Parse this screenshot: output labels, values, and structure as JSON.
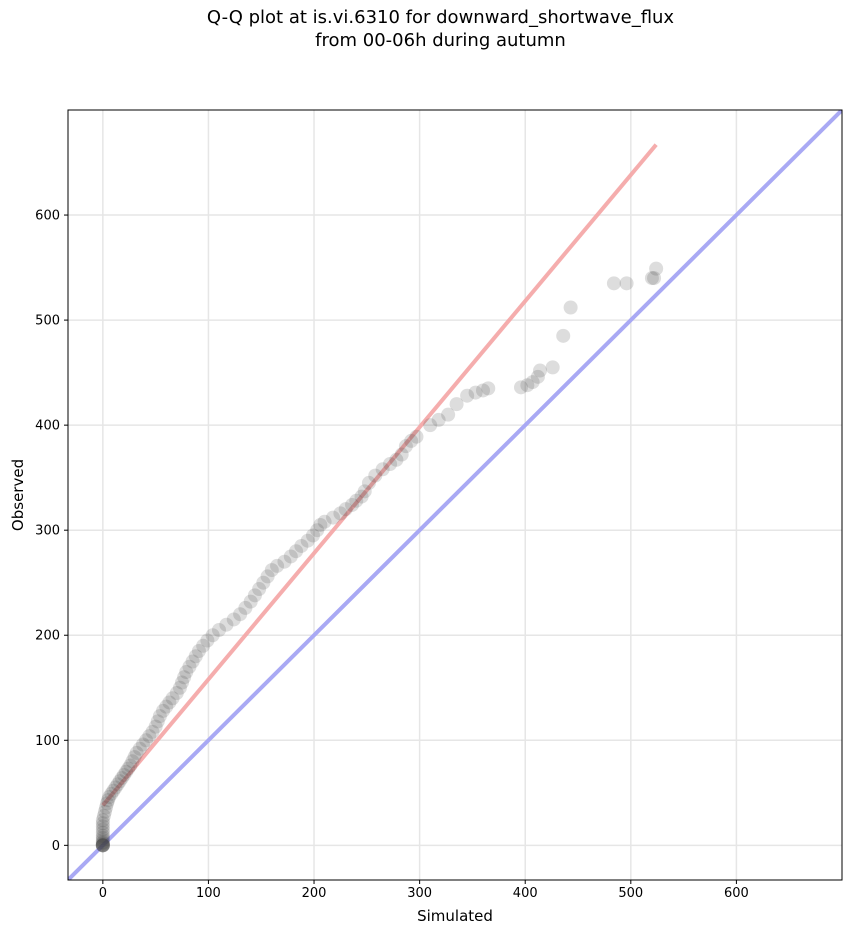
{
  "chart_data": {
    "type": "scatter",
    "title_line1": "Q-Q plot at is.vi.6310 for downward_shortwave_flux",
    "title_line2": "from 00-06h during autumn",
    "xlabel": "Simulated",
    "ylabel": "Observed",
    "xlim": [
      -33,
      700
    ],
    "ylim": [
      -33,
      700
    ],
    "grid": true,
    "xticks": [
      0,
      100,
      200,
      300,
      400,
      500,
      600
    ],
    "yticks": [
      0,
      100,
      200,
      300,
      400,
      500,
      600
    ],
    "colors": {
      "points": "#444444",
      "fit_line": "#f4a4a4",
      "identity_line": "#a9a9f4",
      "grid": "#e6e6e6"
    },
    "fit_line": {
      "x": [
        0,
        524
      ],
      "y": [
        38,
        667
      ]
    },
    "identity_line": {
      "x": [
        -33,
        700
      ],
      "y": [
        -33,
        700
      ]
    },
    "points": [
      [
        0,
        0
      ],
      [
        0,
        0
      ],
      [
        0,
        0
      ],
      [
        0,
        0
      ],
      [
        0,
        0
      ],
      [
        0,
        1
      ],
      [
        0,
        2
      ],
      [
        0,
        3
      ],
      [
        0,
        5
      ],
      [
        0,
        7
      ],
      [
        0,
        9
      ],
      [
        0,
        12
      ],
      [
        0,
        15
      ],
      [
        0,
        18
      ],
      [
        0,
        21
      ],
      [
        0,
        24
      ],
      [
        1,
        28
      ],
      [
        2,
        32
      ],
      [
        3,
        36
      ],
      [
        4,
        40
      ],
      [
        5,
        43
      ],
      [
        6,
        46
      ],
      [
        8,
        49
      ],
      [
        10,
        52
      ],
      [
        12,
        55
      ],
      [
        14,
        58
      ],
      [
        16,
        61
      ],
      [
        18,
        64
      ],
      [
        20,
        67
      ],
      [
        22,
        70
      ],
      [
        24,
        73
      ],
      [
        26,
        76
      ],
      [
        28,
        80
      ],
      [
        30,
        84
      ],
      [
        32,
        88
      ],
      [
        35,
        92
      ],
      [
        38,
        96
      ],
      [
        41,
        100
      ],
      [
        44,
        104
      ],
      [
        47,
        108
      ],
      [
        50,
        113
      ],
      [
        52,
        118
      ],
      [
        54,
        123
      ],
      [
        57,
        128
      ],
      [
        60,
        132
      ],
      [
        63,
        136
      ],
      [
        66,
        140
      ],
      [
        70,
        145
      ],
      [
        73,
        150
      ],
      [
        75,
        155
      ],
      [
        77,
        160
      ],
      [
        79,
        165
      ],
      [
        82,
        170
      ],
      [
        85,
        175
      ],
      [
        88,
        180
      ],
      [
        91,
        185
      ],
      [
        95,
        190
      ],
      [
        99,
        195
      ],
      [
        104,
        200
      ],
      [
        110,
        205
      ],
      [
        117,
        210
      ],
      [
        124,
        215
      ],
      [
        130,
        220
      ],
      [
        135,
        226
      ],
      [
        140,
        232
      ],
      [
        144,
        238
      ],
      [
        148,
        244
      ],
      [
        152,
        250
      ],
      [
        156,
        256
      ],
      [
        160,
        262
      ],
      [
        165,
        266
      ],
      [
        172,
        270
      ],
      [
        178,
        275
      ],
      [
        183,
        280
      ],
      [
        188,
        285
      ],
      [
        194,
        290
      ],
      [
        199,
        295
      ],
      [
        203,
        300
      ],
      [
        206,
        305
      ],
      [
        210,
        308
      ],
      [
        218,
        312
      ],
      [
        225,
        316
      ],
      [
        230,
        320
      ],
      [
        236,
        324
      ],
      [
        240,
        328
      ],
      [
        245,
        332
      ],
      [
        248,
        337
      ],
      [
        252,
        345
      ],
      [
        258,
        352
      ],
      [
        265,
        358
      ],
      [
        272,
        363
      ],
      [
        278,
        367
      ],
      [
        283,
        372
      ],
      [
        287,
        380
      ],
      [
        292,
        385
      ],
      [
        297,
        389
      ],
      [
        310,
        400
      ],
      [
        318,
        405
      ],
      [
        327,
        410
      ],
      [
        335,
        420
      ],
      [
        345,
        428
      ],
      [
        353,
        431
      ],
      [
        360,
        433
      ],
      [
        365,
        435
      ],
      [
        396,
        436
      ],
      [
        402,
        438
      ],
      [
        407,
        441
      ],
      [
        412,
        446
      ],
      [
        414,
        452
      ],
      [
        426,
        455
      ],
      [
        436,
        485
      ],
      [
        443,
        512
      ],
      [
        484,
        535
      ],
      [
        496,
        535
      ],
      [
        520,
        540
      ],
      [
        522,
        540
      ],
      [
        524,
        549
      ]
    ]
  }
}
